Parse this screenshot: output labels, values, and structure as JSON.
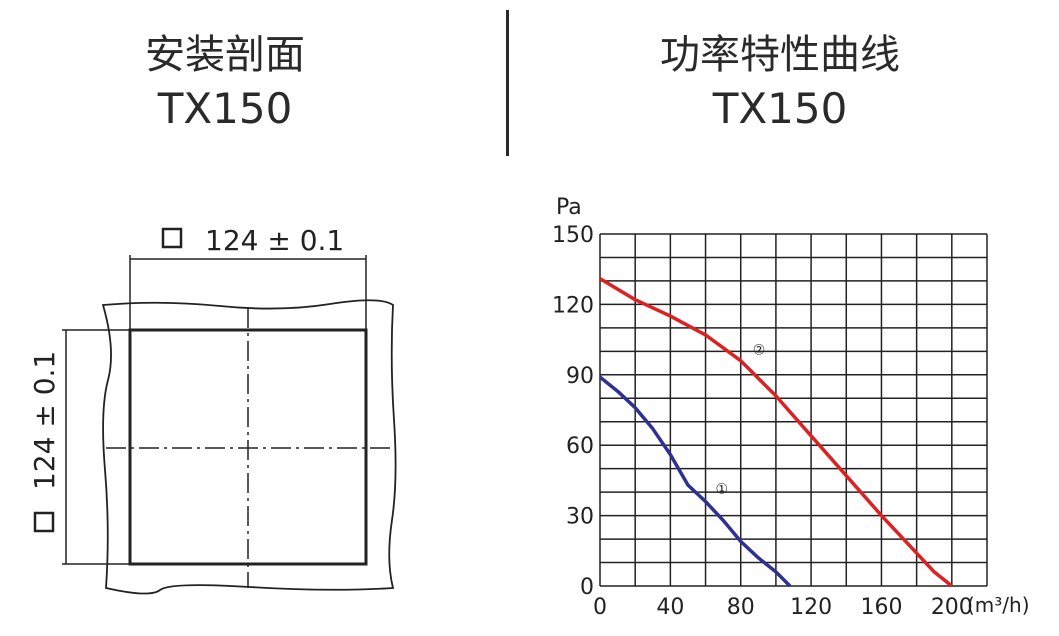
{
  "section_drawing": {
    "title": "安装剖面",
    "model": "TX150",
    "dim_horizontal": "124 ± 0.1",
    "dim_vertical": "124 ± 0.1",
    "square_symbol": "□"
  },
  "section_chart": {
    "title": "功率特性曲线",
    "model": "TX150"
  },
  "chart_data": {
    "type": "line",
    "ylabel": "Pa",
    "xlabel": "(m³/h)",
    "xlim": [
      0,
      220
    ],
    "ylim": [
      0,
      150
    ],
    "x_ticks": [
      "0",
      "40",
      "80",
      "120",
      "160",
      "200"
    ],
    "y_ticks": [
      "0",
      "30",
      "60",
      "90",
      "120",
      "150"
    ],
    "grid": true,
    "series": [
      {
        "name": "①",
        "color": "#2e3192",
        "x": [
          0,
          10,
          20,
          30,
          40,
          50,
          60,
          70,
          80,
          90,
          100,
          108
        ],
        "y": [
          89,
          83,
          76,
          67,
          56,
          43,
          36,
          28,
          19,
          12,
          6,
          0
        ]
      },
      {
        "name": "②",
        "color": "#e02020",
        "x": [
          0,
          20,
          40,
          60,
          80,
          100,
          120,
          140,
          160,
          180,
          190,
          200
        ],
        "y": [
          131,
          122,
          115,
          107,
          96,
          81,
          64,
          47,
          30,
          14,
          6,
          0
        ]
      }
    ]
  }
}
